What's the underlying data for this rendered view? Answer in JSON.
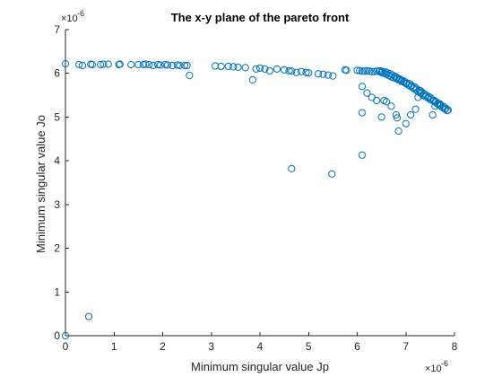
{
  "chart_data": {
    "type": "scatter",
    "title": "The x-y plane of the pareto front",
    "xlabel": "Minimum singular value Jp",
    "ylabel": "Minimum singular value Jo",
    "x_exponent_base": "×10",
    "x_exponent_power": "-6",
    "y_exponent_base": "×10",
    "y_exponent_power": "-6",
    "xlim": [
      0,
      8
    ],
    "ylim": [
      0,
      7
    ],
    "xticks": [
      "0",
      "1",
      "2",
      "3",
      "4",
      "5",
      "6",
      "7",
      "8"
    ],
    "yticks": [
      "0",
      "1",
      "2",
      "3",
      "4",
      "5",
      "6",
      "7"
    ],
    "xtick_values": [
      0,
      1,
      2,
      3,
      4,
      5,
      6,
      7,
      8
    ],
    "ytick_values": [
      0,
      1,
      2,
      3,
      4,
      5,
      6,
      7
    ],
    "grid": false,
    "marker_color": "#0072BD",
    "marker": "open-circle",
    "points": [
      [
        0.0,
        0.0
      ],
      [
        0.48,
        0.44
      ],
      [
        0.0,
        6.22
      ],
      [
        0.28,
        6.2
      ],
      [
        0.35,
        6.18
      ],
      [
        0.52,
        6.21
      ],
      [
        0.55,
        6.2
      ],
      [
        0.72,
        6.2
      ],
      [
        0.78,
        6.21
      ],
      [
        0.88,
        6.21
      ],
      [
        1.1,
        6.2
      ],
      [
        1.12,
        6.21
      ],
      [
        1.35,
        6.2
      ],
      [
        1.5,
        6.2
      ],
      [
        1.6,
        6.2
      ],
      [
        1.65,
        6.21
      ],
      [
        1.72,
        6.2
      ],
      [
        1.8,
        6.18
      ],
      [
        1.9,
        6.2
      ],
      [
        1.95,
        6.19
      ],
      [
        2.05,
        6.2
      ],
      [
        2.1,
        6.19
      ],
      [
        2.2,
        6.18
      ],
      [
        2.3,
        6.19
      ],
      [
        2.35,
        6.18
      ],
      [
        2.45,
        6.18
      ],
      [
        2.5,
        6.18
      ],
      [
        2.55,
        5.95
      ],
      [
        3.08,
        6.17
      ],
      [
        3.2,
        6.16
      ],
      [
        3.35,
        6.16
      ],
      [
        3.45,
        6.15
      ],
      [
        3.55,
        6.14
      ],
      [
        3.7,
        6.13
      ],
      [
        3.85,
        5.85
      ],
      [
        3.92,
        6.1
      ],
      [
        4.0,
        6.12
      ],
      [
        4.1,
        6.1
      ],
      [
        4.2,
        6.06
      ],
      [
        4.35,
        6.1
      ],
      [
        4.5,
        6.08
      ],
      [
        4.6,
        6.06
      ],
      [
        4.65,
        6.05
      ],
      [
        4.75,
        6.02
      ],
      [
        4.85,
        6.04
      ],
      [
        4.95,
        6.02
      ],
      [
        5.0,
        6.01
      ],
      [
        5.2,
        5.99
      ],
      [
        5.3,
        5.98
      ],
      [
        5.4,
        5.96
      ],
      [
        5.5,
        5.94
      ],
      [
        5.75,
        6.08
      ],
      [
        5.78,
        6.07
      ],
      [
        6.0,
        6.07
      ],
      [
        6.05,
        6.06
      ],
      [
        6.1,
        6.05
      ],
      [
        6.15,
        6.05
      ],
      [
        6.2,
        6.06
      ],
      [
        6.25,
        6.05
      ],
      [
        6.3,
        6.04
      ],
      [
        6.35,
        6.04
      ],
      [
        6.4,
        6.05
      ],
      [
        6.45,
        6.04
      ],
      [
        6.5,
        6.02
      ],
      [
        6.55,
        6.0
      ],
      [
        6.6,
        5.98
      ],
      [
        6.65,
        5.95
      ],
      [
        6.7,
        5.92
      ],
      [
        6.75,
        5.9
      ],
      [
        6.8,
        5.88
      ],
      [
        6.85,
        5.85
      ],
      [
        6.9,
        5.82
      ],
      [
        6.95,
        5.8
      ],
      [
        7.0,
        5.77
      ],
      [
        7.05,
        5.73
      ],
      [
        7.1,
        5.7
      ],
      [
        7.15,
        5.66
      ],
      [
        7.2,
        5.62
      ],
      [
        7.25,
        5.58
      ],
      [
        7.3,
        5.55
      ],
      [
        7.35,
        5.5
      ],
      [
        7.4,
        5.47
      ],
      [
        7.45,
        5.44
      ],
      [
        7.5,
        5.4
      ],
      [
        7.55,
        5.38
      ],
      [
        7.6,
        5.34
      ],
      [
        7.65,
        5.3
      ],
      [
        7.7,
        5.26
      ],
      [
        7.75,
        5.22
      ],
      [
        7.8,
        5.18
      ],
      [
        7.85,
        5.15
      ],
      [
        6.47,
        6.06
      ],
      [
        6.52,
        6.04
      ],
      [
        6.58,
        6.03
      ],
      [
        6.62,
        6.01
      ],
      [
        6.68,
        5.99
      ],
      [
        6.72,
        5.96
      ],
      [
        6.78,
        5.93
      ],
      [
        6.82,
        5.9
      ],
      [
        6.88,
        5.87
      ],
      [
        6.92,
        5.84
      ],
      [
        6.97,
        5.82
      ],
      [
        7.02,
        5.78
      ],
      [
        7.08,
        5.76
      ],
      [
        7.12,
        5.72
      ],
      [
        7.18,
        5.69
      ],
      [
        7.22,
        5.65
      ],
      [
        7.28,
        5.61
      ],
      [
        7.33,
        5.57
      ],
      [
        7.38,
        5.53
      ],
      [
        7.42,
        5.5
      ],
      [
        7.48,
        5.46
      ],
      [
        7.52,
        5.43
      ],
      [
        7.58,
        5.38
      ],
      [
        7.62,
        5.35
      ],
      [
        7.68,
        5.31
      ],
      [
        7.72,
        5.27
      ],
      [
        7.78,
        5.24
      ],
      [
        7.82,
        5.2
      ],
      [
        7.87,
        5.16
      ],
      [
        6.1,
        5.7
      ],
      [
        6.1,
        5.1
      ],
      [
        6.2,
        5.55
      ],
      [
        6.3,
        5.45
      ],
      [
        6.4,
        5.38
      ],
      [
        6.5,
        5.0
      ],
      [
        6.55,
        5.38
      ],
      [
        6.6,
        5.35
      ],
      [
        6.7,
        5.25
      ],
      [
        6.8,
        5.05
      ],
      [
        6.82,
        4.98
      ],
      [
        6.85,
        4.68
      ],
      [
        7.0,
        4.85
      ],
      [
        7.1,
        5.05
      ],
      [
        7.2,
        5.18
      ],
      [
        7.25,
        5.45
      ],
      [
        7.3,
        5.6
      ],
      [
        7.55,
        5.05
      ],
      [
        7.6,
        5.25
      ],
      [
        7.7,
        5.3
      ],
      [
        4.65,
        3.82
      ],
      [
        5.48,
        3.7
      ],
      [
        6.1,
        4.13
      ]
    ]
  }
}
